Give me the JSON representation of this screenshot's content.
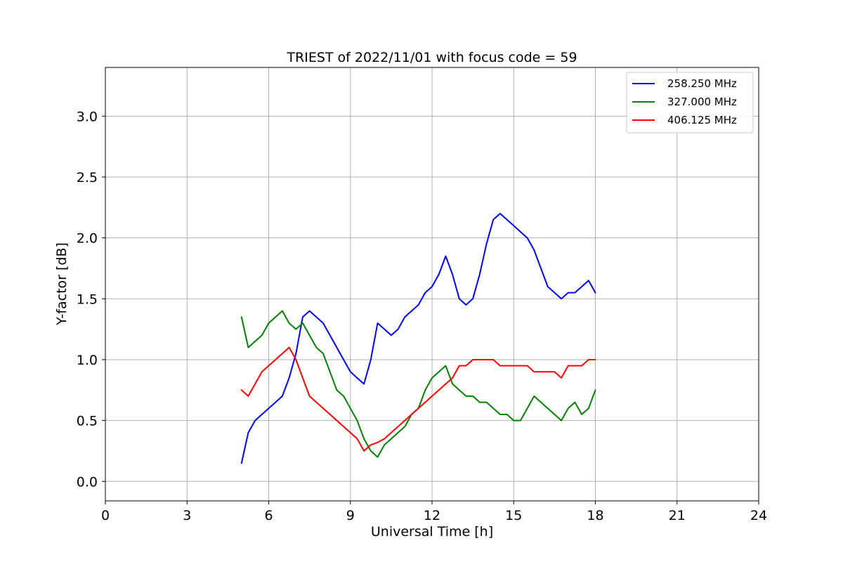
{
  "chart_data": {
    "type": "line",
    "title": "TRIEST of 2022/11/01 with focus code = 59",
    "xlabel": "Universal Time [h]",
    "ylabel": "Y-factor [dB]",
    "xlim": [
      0,
      24
    ],
    "ylim": [
      -0.16,
      3.4
    ],
    "xticks": [
      0,
      3,
      6,
      9,
      12,
      15,
      18,
      21,
      24
    ],
    "xtick_labels": [
      "0",
      "3",
      "6",
      "9",
      "12",
      "15",
      "18",
      "21",
      "24"
    ],
    "yticks": [
      0.0,
      0.5,
      1.0,
      1.5,
      2.0,
      2.5,
      3.0
    ],
    "ytick_labels": [
      "0.0",
      "0.5",
      "1.0",
      "1.5",
      "2.0",
      "2.5",
      "3.0"
    ],
    "grid": true,
    "legend_position": "top-right",
    "series": [
      {
        "name": "258.250 MHz",
        "color": "#0000ff",
        "x": [
          5.0,
          5.25,
          5.5,
          5.75,
          6.0,
          6.25,
          6.5,
          6.75,
          7.0,
          7.25,
          7.5,
          7.75,
          8.0,
          8.25,
          8.5,
          8.75,
          9.0,
          9.25,
          9.5,
          9.75,
          10.0,
          10.25,
          10.5,
          10.75,
          11.0,
          11.25,
          11.5,
          11.75,
          12.0,
          12.25,
          12.5,
          12.75,
          13.0,
          13.25,
          13.5,
          13.75,
          14.0,
          14.25,
          14.5,
          14.75,
          15.0,
          15.25,
          15.5,
          15.75,
          16.0,
          16.25,
          16.5,
          16.75,
          17.0,
          17.25,
          17.5,
          17.75,
          18.0
        ],
        "y": [
          0.15,
          0.4,
          0.5,
          0.55,
          0.6,
          0.65,
          0.7,
          0.85,
          1.05,
          1.35,
          1.4,
          1.35,
          1.3,
          1.2,
          1.1,
          1.0,
          0.9,
          0.85,
          0.8,
          1.0,
          1.3,
          1.25,
          1.2,
          1.25,
          1.35,
          1.4,
          1.45,
          1.55,
          1.6,
          1.7,
          1.85,
          1.7,
          1.5,
          1.45,
          1.5,
          1.7,
          1.95,
          2.15,
          2.2,
          2.15,
          2.1,
          2.05,
          2.0,
          1.9,
          1.75,
          1.6,
          1.55,
          1.5,
          1.55,
          1.55,
          1.6,
          1.65,
          1.55
        ]
      },
      {
        "name": "327.000 MHz",
        "color": "#008000",
        "x": [
          5.0,
          5.25,
          5.5,
          5.75,
          6.0,
          6.25,
          6.5,
          6.75,
          7.0,
          7.25,
          7.5,
          7.75,
          8.0,
          8.25,
          8.5,
          8.75,
          9.0,
          9.25,
          9.5,
          9.75,
          10.0,
          10.25,
          10.5,
          10.75,
          11.0,
          11.25,
          11.5,
          11.75,
          12.0,
          12.25,
          12.5,
          12.75,
          13.0,
          13.25,
          13.5,
          13.75,
          14.0,
          14.25,
          14.5,
          14.75,
          15.0,
          15.25,
          15.5,
          15.75,
          16.0,
          16.25,
          16.5,
          16.75,
          17.0,
          17.25,
          17.5,
          17.75,
          18.0
        ],
        "y": [
          1.35,
          1.1,
          1.15,
          1.2,
          1.3,
          1.35,
          1.4,
          1.3,
          1.25,
          1.3,
          1.2,
          1.1,
          1.05,
          0.9,
          0.75,
          0.7,
          0.6,
          0.5,
          0.35,
          0.25,
          0.2,
          0.3,
          0.35,
          0.4,
          0.45,
          0.55,
          0.6,
          0.75,
          0.85,
          0.9,
          0.95,
          0.8,
          0.75,
          0.7,
          0.7,
          0.65,
          0.65,
          0.6,
          0.55,
          0.55,
          0.5,
          0.5,
          0.6,
          0.7,
          0.65,
          0.6,
          0.55,
          0.5,
          0.6,
          0.65,
          0.55,
          0.6,
          0.75
        ]
      },
      {
        "name": "406.125 MHz",
        "color": "#ff0000",
        "x": [
          5.0,
          5.25,
          5.5,
          5.75,
          6.0,
          6.25,
          6.5,
          6.75,
          7.0,
          7.25,
          7.5,
          7.75,
          8.0,
          8.25,
          8.5,
          8.75,
          9.0,
          9.25,
          9.5,
          9.75,
          10.0,
          10.25,
          10.5,
          10.75,
          11.0,
          11.25,
          11.5,
          11.75,
          12.0,
          12.25,
          12.5,
          12.75,
          13.0,
          13.25,
          13.5,
          13.75,
          14.0,
          14.25,
          14.5,
          14.75,
          15.0,
          15.25,
          15.5,
          15.75,
          16.0,
          16.25,
          16.5,
          16.75,
          17.0,
          17.25,
          17.5,
          17.75,
          18.0
        ],
        "y": [
          0.75,
          0.7,
          0.8,
          0.9,
          0.95,
          1.0,
          1.05,
          1.1,
          1.0,
          0.85,
          0.7,
          0.65,
          0.6,
          0.55,
          0.5,
          0.45,
          0.4,
          0.35,
          0.25,
          0.3,
          0.32,
          0.35,
          0.4,
          0.45,
          0.5,
          0.55,
          0.6,
          0.65,
          0.7,
          0.75,
          0.8,
          0.85,
          0.95,
          0.95,
          1.0,
          1.0,
          1.0,
          1.0,
          0.95,
          0.95,
          0.95,
          0.95,
          0.95,
          0.9,
          0.9,
          0.9,
          0.9,
          0.85,
          0.95,
          0.95,
          0.95,
          1.0,
          1.0
        ]
      }
    ]
  }
}
